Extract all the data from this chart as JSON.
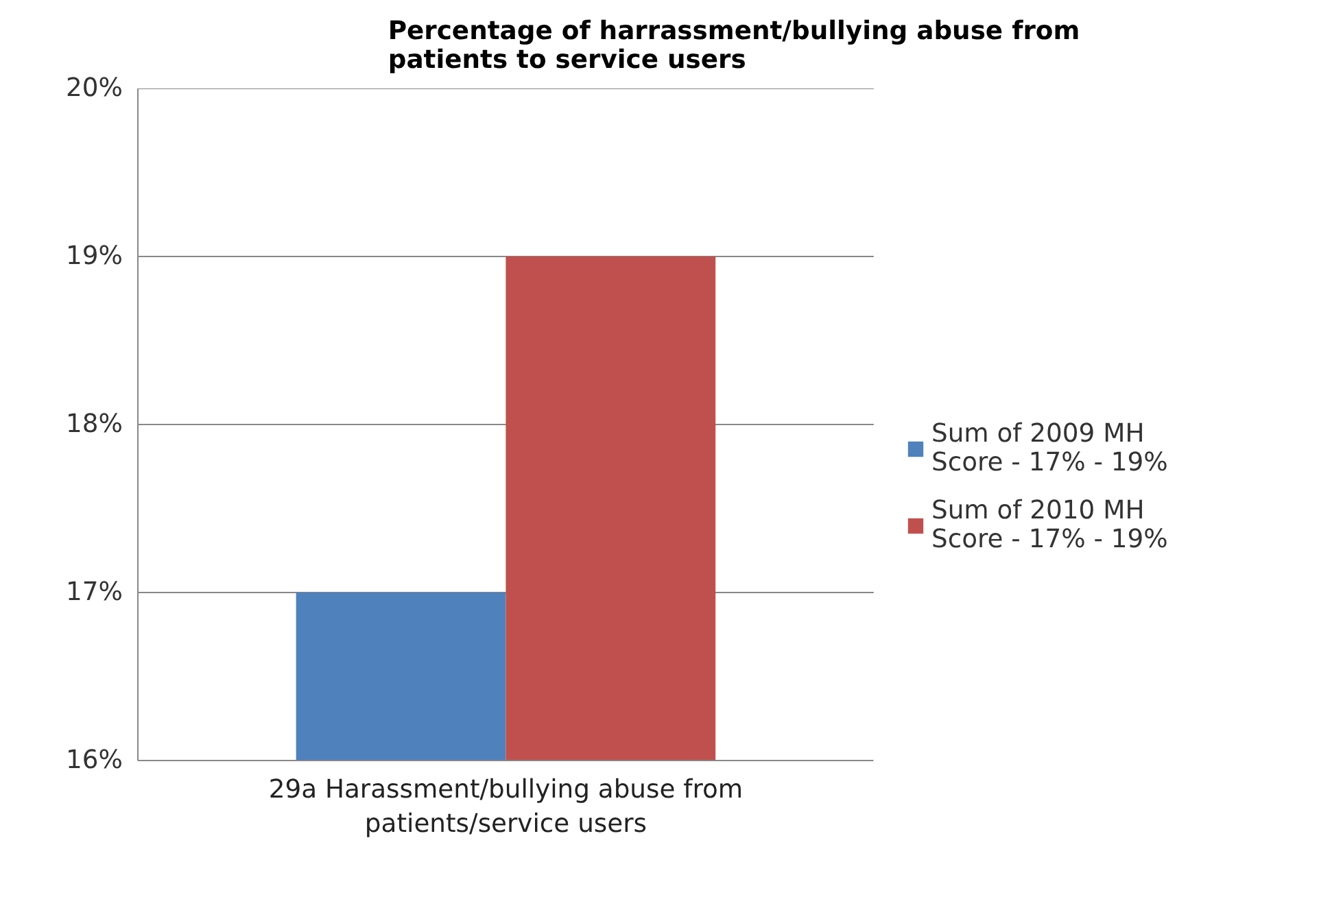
{
  "chart_data": {
    "type": "bar",
    "title": "Percentage of harrassment/bullying abuse from patients to service users",
    "categories": [
      "29a Harassment/bullying abuse from patients/service users"
    ],
    "series": [
      {
        "name": "Sum of 2009 MH Score - 17% - 19%",
        "color": "#4f81bd",
        "values": [
          17
        ]
      },
      {
        "name": "Sum of 2010 MH Score - 17% - 19%",
        "color": "#c0504d",
        "values": [
          19
        ]
      }
    ],
    "ylim": [
      16,
      20
    ],
    "yticks": [
      {
        "value": 16,
        "label": "16%"
      },
      {
        "value": 17,
        "label": "17%"
      },
      {
        "value": 18,
        "label": "18%"
      },
      {
        "value": 19,
        "label": "19%"
      },
      {
        "value": 20,
        "label": "20%"
      }
    ],
    "grid": "y",
    "legend": "right"
  }
}
